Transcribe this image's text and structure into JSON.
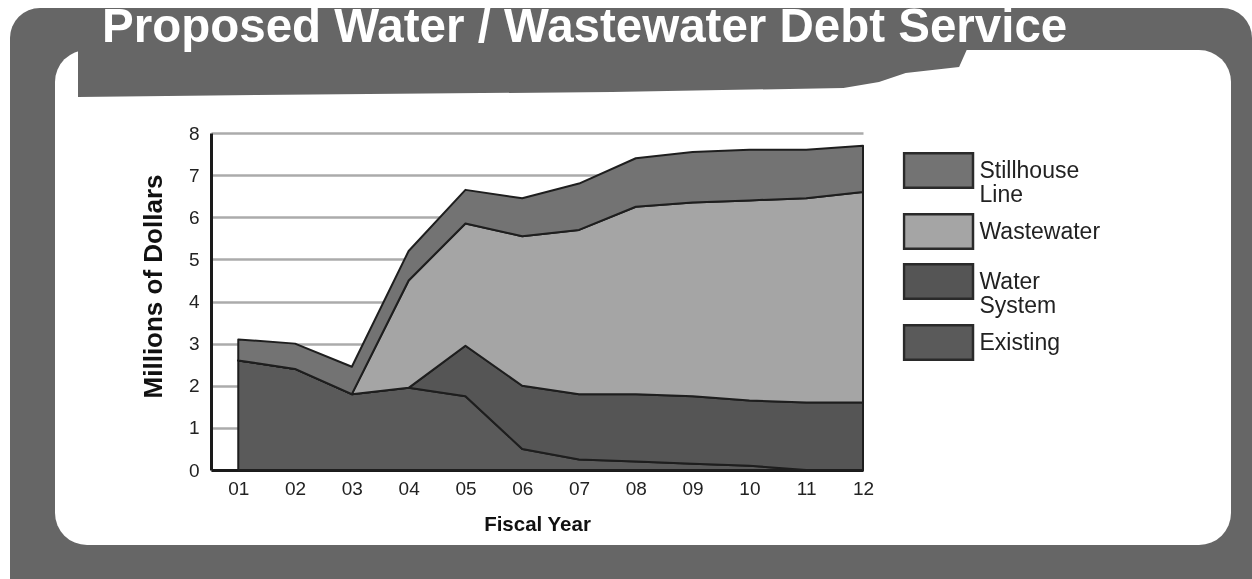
{
  "chart_data": {
    "type": "area",
    "title": "Proposed Water / Wastewater Debt Service",
    "xlabel": "Fiscal Year",
    "ylabel": "Millions of Dollars",
    "categories": [
      "01",
      "02",
      "03",
      "04",
      "05",
      "06",
      "07",
      "08",
      "09",
      "10",
      "11",
      "12"
    ],
    "series": [
      {
        "name": "Existing",
        "color": "#5a5a5a",
        "values": [
          2.6,
          2.4,
          1.8,
          1.95,
          1.75,
          0.5,
          0.25,
          0.2,
          0.15,
          0.1,
          0,
          0
        ]
      },
      {
        "name": "Water System",
        "color": "#555555",
        "values": [
          0,
          0,
          0,
          0,
          1.2,
          1.5,
          1.55,
          1.6,
          1.6,
          1.55,
          1.6,
          1.6
        ]
      },
      {
        "name": "Wastewater",
        "color": "#a5a5a5",
        "values": [
          0,
          0,
          0,
          2.55,
          2.9,
          3.55,
          3.9,
          4.45,
          4.6,
          4.75,
          4.85,
          5
        ]
      },
      {
        "name": "Stillhouse Line",
        "color": "#737373",
        "values": [
          0.5,
          0.6,
          0.65,
          0.7,
          0.8,
          0.9,
          1.1,
          1.15,
          1.2,
          1.2,
          1.15,
          1.1
        ]
      }
    ],
    "stacked": true,
    "ylim": [
      0,
      8
    ],
    "yticks": [
      0,
      1,
      2,
      3,
      4,
      5,
      6,
      7,
      8
    ],
    "grid": "y",
    "legend": "right"
  }
}
